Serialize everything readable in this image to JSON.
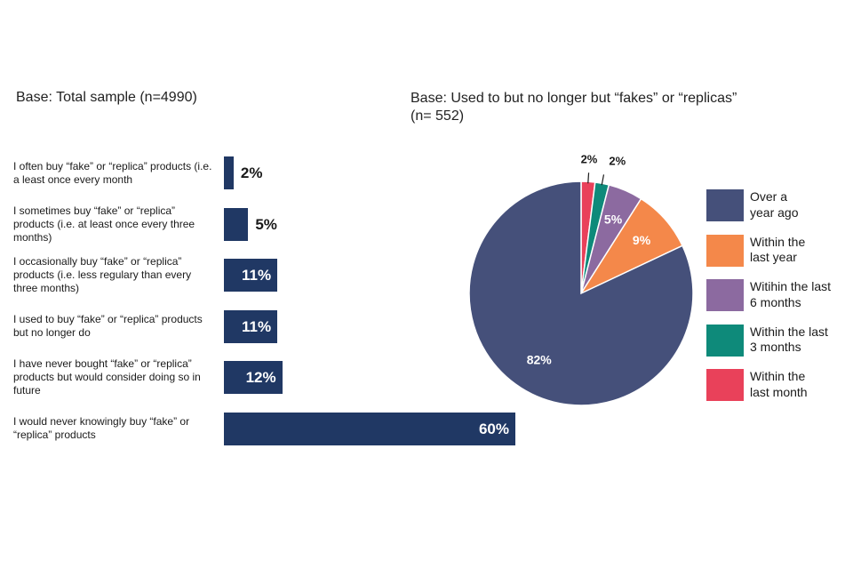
{
  "left_panel": {
    "base": "Base: Total sample (n=4990)"
  },
  "right_panel": {
    "base_line1": "Base: Used to but no longer but “fakes” or “replicas”",
    "base_line2": "(n= 552)"
  },
  "chart_data": [
    {
      "type": "bar",
      "orientation": "horizontal",
      "title": "",
      "xlabel": "",
      "ylabel": "",
      "xlim": [
        0,
        60
      ],
      "grid": false,
      "color": "#203864",
      "categories": [
        "I often buy “fake” or “replica” products (i.e. a least once every month",
        "I sometimes buy “fake” or “replica” products (i.e. at least once every three months)",
        "I occasionally buy “fake” or “replica” products (i.e. less regulary than every three months)",
        "I used to buy “fake” or “replica” products but no longer do",
        "I have never bought “fake” or “replica” products but would consider doing so in future",
        "I would never knowingly buy “fake” or “replica” products"
      ],
      "values": [
        2,
        5,
        11,
        11,
        12,
        60
      ],
      "value_labels": [
        "2%",
        "5%",
        "11%",
        "11%",
        "12%",
        "60%"
      ]
    },
    {
      "type": "pie",
      "title": "",
      "legend_position": "right",
      "slices": [
        {
          "label": "Over a year ago",
          "value": 82,
          "value_label": "82%",
          "color": "#45507a"
        },
        {
          "label": "Within the last year",
          "value": 9,
          "value_label": "9%",
          "color": "#f4884a"
        },
        {
          "label": "Witihin the last 6 months",
          "value": 5,
          "value_label": "5%",
          "color": "#8c6aa0"
        },
        {
          "label": "Within the last 3 months",
          "value": 2,
          "value_label": "2%",
          "color": "#0e8a7a"
        },
        {
          "label": "Within the last month",
          "value": 2,
          "value_label": "2%",
          "color": "#e9415a"
        }
      ],
      "legend": [
        {
          "line1": "Over a",
          "line2": "year ago",
          "color": "#45507a"
        },
        {
          "line1": "Within the",
          "line2": "last year",
          "color": "#f4884a"
        },
        {
          "line1": "Witihin the last",
          "line2": "6 months",
          "color": "#8c6aa0"
        },
        {
          "line1": "Within the last",
          "line2": "3 months",
          "color": "#0e8a7a"
        },
        {
          "line1": "Within the",
          "line2": "last month",
          "color": "#e9415a"
        }
      ]
    }
  ]
}
